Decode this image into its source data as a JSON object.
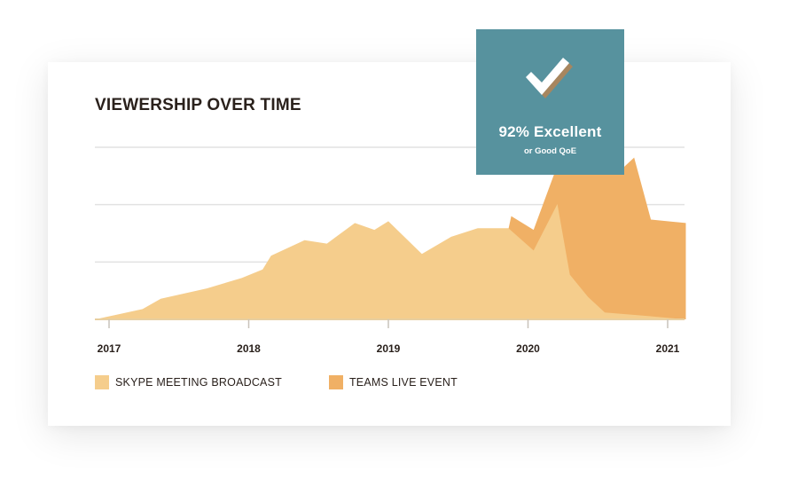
{
  "chart_data": {
    "type": "area",
    "title": "VIEWERSHIP OVER TIME",
    "xlabel": "",
    "ylabel": "",
    "x_ticks": [
      "2017",
      "2018",
      "2019",
      "2020",
      "2021"
    ],
    "xlim": [
      2016.9,
      2021.13
    ],
    "ylim": [
      0,
      100
    ],
    "y_gridlines": [
      33.3,
      66.7,
      100
    ],
    "grid": true,
    "legend_position": "bottom-left",
    "series": [
      {
        "name": "SKYPE MEETING BROADCAST",
        "color": "#f5cd8c",
        "x": [
          2016.9,
          2017.24,
          2017.37,
          2017.7,
          2017.95,
          2018.1,
          2018.16,
          2018.4,
          2018.56,
          2018.76,
          2018.9,
          2019.0,
          2019.24,
          2019.45,
          2019.64,
          2019.72,
          2019.86,
          2020.04,
          2020.21,
          2020.3,
          2020.43,
          2020.55,
          2020.85,
          2021.13
        ],
        "values": [
          0,
          6,
          12,
          18,
          24,
          29,
          37,
          46,
          44,
          56,
          52,
          57,
          38,
          48,
          53,
          53,
          53,
          40,
          67,
          26,
          13,
          4,
          2,
          0
        ]
      },
      {
        "name": "TEAMS LIVE EVENT",
        "color": "#f0b065",
        "x": [
          2016.9,
          2019.72,
          2019.88,
          2020.04,
          2020.19,
          2020.35,
          2020.46,
          2020.56,
          2020.64,
          2020.76,
          2020.88,
          2021.13
        ],
        "values": [
          0,
          0,
          60,
          52,
          85,
          108,
          96,
          97,
          85,
          94,
          58,
          56
        ]
      }
    ]
  },
  "badge": {
    "icon": "checkmark-icon",
    "main_text": "92% Excellent",
    "sub_text": "or Good QoE",
    "color": "#57929e"
  }
}
